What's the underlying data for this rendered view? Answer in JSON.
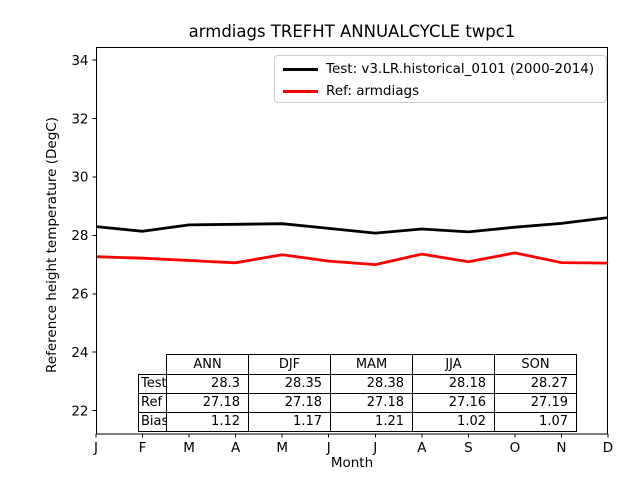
{
  "chart_data": {
    "type": "line",
    "title": "armdiags TREFHT ANNUALCYCLE twpc1",
    "xlabel": "Month",
    "ylabel": "Reference height temperature (DegC)",
    "x_tick_labels": [
      "J",
      "F",
      "M",
      "A",
      "M",
      "J",
      "J",
      "A",
      "S",
      "O",
      "N",
      "D"
    ],
    "y_ticks": [
      22,
      24,
      26,
      28,
      30,
      32,
      34
    ],
    "ylim": [
      21.2,
      34.45
    ],
    "grid": false,
    "legend_position": "upper right",
    "series": [
      {
        "name": "Test: v3.LR.historical_0101 (2000-2014)",
        "color": "#000000",
        "values": [
          28.3,
          28.14,
          28.36,
          28.38,
          28.4,
          28.24,
          28.08,
          28.22,
          28.12,
          28.28,
          28.41,
          28.61
        ]
      },
      {
        "name": "Ref: armdiags",
        "color": "#ff0000",
        "values": [
          27.27,
          27.22,
          27.14,
          27.06,
          27.34,
          27.12,
          27.0,
          27.36,
          27.1,
          27.4,
          27.07,
          27.05
        ]
      }
    ],
    "table": {
      "columns": [
        "ANN",
        "DJF",
        "MAM",
        "JJA",
        "SON"
      ],
      "rows": [
        {
          "label": "Test",
          "values": [
            "28.3",
            "28.35",
            "28.38",
            "28.18",
            "28.27"
          ]
        },
        {
          "label": "Ref",
          "values": [
            "27.18",
            "27.18",
            "27.18",
            "27.16",
            "27.19"
          ]
        },
        {
          "label": "Bias",
          "values": [
            "1.12",
            "1.17",
            "1.21",
            "1.02",
            "1.07"
          ]
        }
      ]
    }
  }
}
